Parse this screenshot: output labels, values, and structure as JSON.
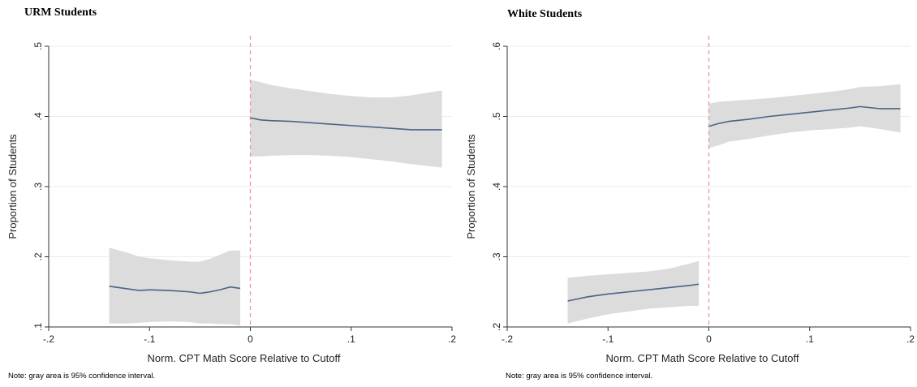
{
  "panels": [
    {
      "title": "URM Students",
      "note": "Note: gray area is 95% confidence interval.",
      "chart_data": {
        "type": "line",
        "title": "URM Students",
        "xlabel": "Norm. CPT Math Score Relative to Cutoff",
        "ylabel": "Proportion of Students",
        "xlim": [
          -0.2,
          0.2
        ],
        "ylim": [
          0.1,
          0.5
        ],
        "xticks": [
          -0.2,
          -0.1,
          0,
          0.1,
          0.2
        ],
        "xtick_labels": [
          "-.2",
          "-.1",
          "0",
          ".1",
          ".2"
        ],
        "yticks": [
          0.1,
          0.2,
          0.3,
          0.4,
          0.5
        ],
        "ytick_labels": [
          ".1",
          ".2",
          ".3",
          ".4",
          ".5"
        ],
        "cutoff_x": 0,
        "grid": "horizontal",
        "series": [
          {
            "segment": "left",
            "x": [
              -0.14,
              -0.12,
              -0.11,
              -0.1,
              -0.08,
              -0.06,
              -0.05,
              -0.04,
              -0.03,
              -0.02,
              -0.01
            ],
            "y": [
              0.158,
              0.154,
              0.152,
              0.153,
              0.152,
              0.15,
              0.148,
              0.15,
              0.153,
              0.157,
              0.155
            ],
            "ci_upper": [
              0.213,
              0.205,
              0.2,
              0.198,
              0.195,
              0.193,
              0.193,
              0.197,
              0.203,
              0.209,
              0.209
            ],
            "ci_lower": [
              0.105,
              0.105,
              0.106,
              0.107,
              0.108,
              0.107,
              0.105,
              0.105,
              0.104,
              0.104,
              0.102
            ]
          },
          {
            "segment": "right",
            "x": [
              0.0,
              0.01,
              0.02,
              0.04,
              0.06,
              0.08,
              0.1,
              0.12,
              0.14,
              0.16,
              0.19
            ],
            "y": [
              0.398,
              0.395,
              0.394,
              0.393,
              0.391,
              0.389,
              0.387,
              0.385,
              0.383,
              0.381,
              0.381
            ],
            "ci_upper": [
              0.452,
              0.449,
              0.445,
              0.44,
              0.436,
              0.432,
              0.429,
              0.427,
              0.427,
              0.43,
              0.437
            ],
            "ci_lower": [
              0.343,
              0.343,
              0.344,
              0.345,
              0.345,
              0.344,
              0.342,
              0.339,
              0.336,
              0.332,
              0.327
            ]
          }
        ]
      }
    },
    {
      "title": "White Students",
      "note": "Note: gray area is 95% confidence interval.",
      "chart_data": {
        "type": "line",
        "title": "White Students",
        "xlabel": "Norm. CPT Math Score Relative to Cutoff",
        "ylabel": "Proportion of Students",
        "xlim": [
          -0.2,
          0.2
        ],
        "ylim": [
          0.2,
          0.6
        ],
        "xticks": [
          -0.2,
          -0.1,
          0,
          0.1,
          0.2
        ],
        "xtick_labels": [
          "-.2",
          "-.1",
          "0",
          ".1",
          ".2"
        ],
        "yticks": [
          0.2,
          0.3,
          0.4,
          0.5,
          0.6
        ],
        "ytick_labels": [
          ".2",
          ".3",
          ".4",
          ".5",
          ".6"
        ],
        "cutoff_x": 0,
        "grid": "horizontal",
        "series": [
          {
            "segment": "left",
            "x": [
              -0.14,
              -0.12,
              -0.1,
              -0.08,
              -0.06,
              -0.04,
              -0.02,
              -0.01
            ],
            "y": [
              0.237,
              0.243,
              0.247,
              0.25,
              0.253,
              0.256,
              0.259,
              0.261
            ],
            "ci_upper": [
              0.27,
              0.273,
              0.275,
              0.277,
              0.279,
              0.283,
              0.29,
              0.294
            ],
            "ci_lower": [
              0.205,
              0.212,
              0.218,
              0.222,
              0.226,
              0.228,
              0.23,
              0.23
            ]
          },
          {
            "segment": "right",
            "x": [
              0.0,
              0.01,
              0.02,
              0.04,
              0.06,
              0.08,
              0.1,
              0.12,
              0.14,
              0.15,
              0.17,
              0.19
            ],
            "y": [
              0.486,
              0.49,
              0.493,
              0.496,
              0.5,
              0.503,
              0.506,
              0.509,
              0.512,
              0.514,
              0.511,
              0.511
            ],
            "ci_upper": [
              0.518,
              0.521,
              0.522,
              0.524,
              0.526,
              0.529,
              0.532,
              0.535,
              0.539,
              0.542,
              0.543,
              0.546
            ],
            "ci_lower": [
              0.455,
              0.459,
              0.464,
              0.468,
              0.473,
              0.477,
              0.48,
              0.482,
              0.484,
              0.486,
              0.482,
              0.477
            ]
          }
        ]
      }
    }
  ],
  "colors": {
    "line": "#4a6485",
    "ci_band": "#dcdcdc",
    "cutoff_line": "#ea9a9a",
    "grid": "#e6ecee",
    "axis": "#333333"
  }
}
